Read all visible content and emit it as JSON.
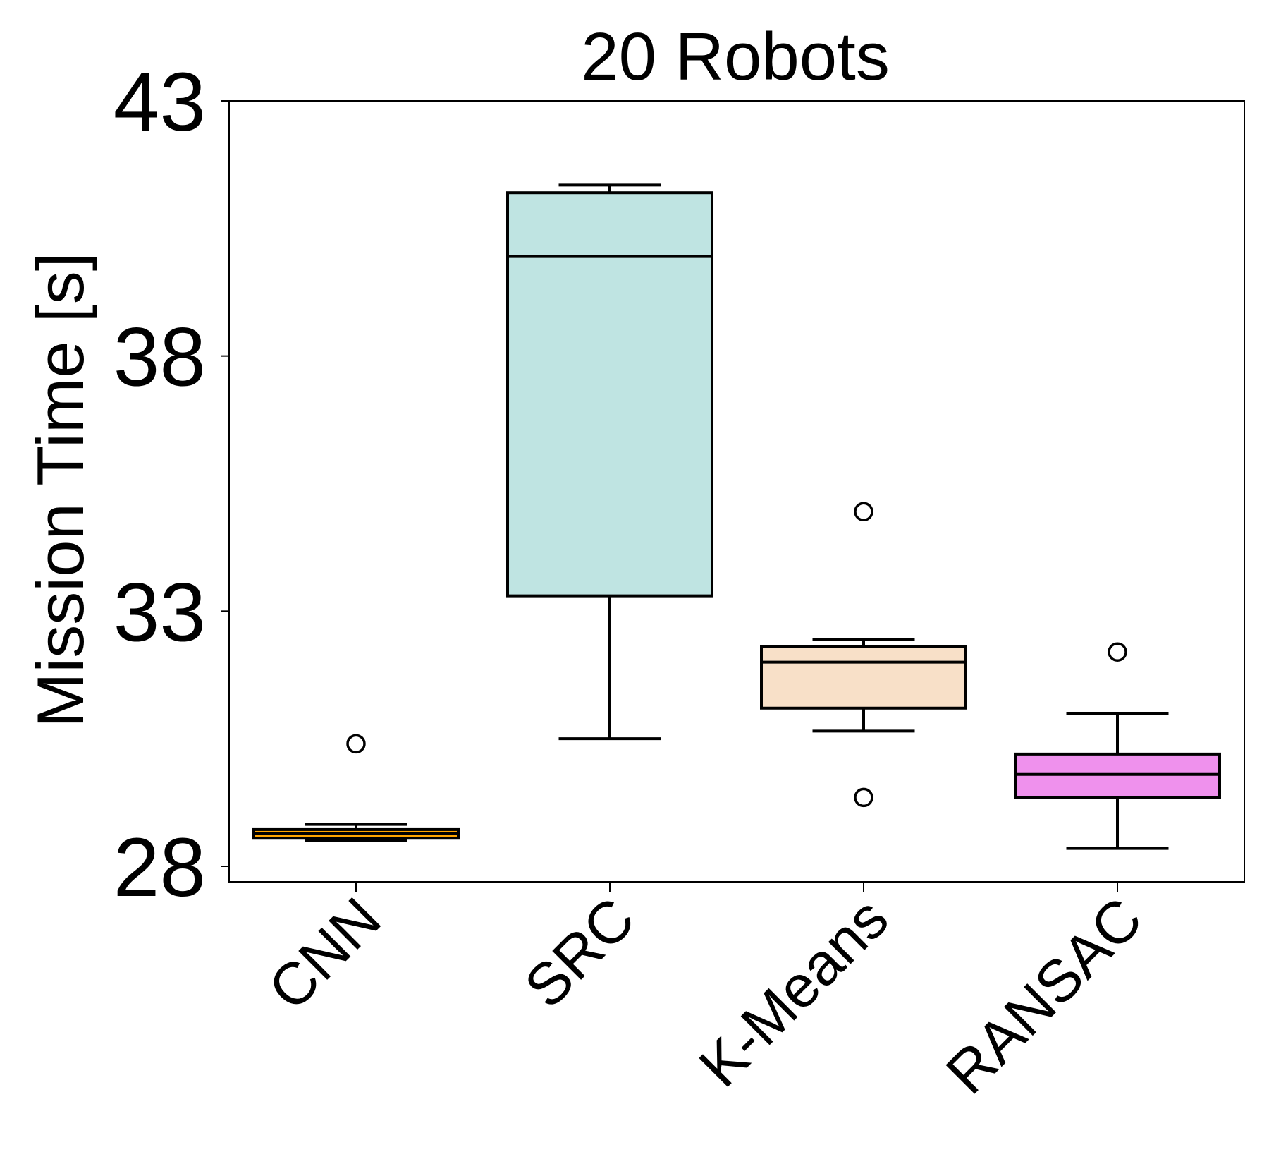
{
  "chart_data": {
    "type": "box",
    "title": "20 Robots",
    "xlabel": "",
    "ylabel": "Mission Time [s]",
    "ylim": [
      27.7,
      43
    ],
    "yticks": [
      28,
      33,
      38,
      43
    ],
    "ytick_labels": [
      "28",
      "33",
      "38",
      "43"
    ],
    "categories": [
      "CNN",
      "SRC",
      "K-Means",
      "RANSAC"
    ],
    "boxes": [
      {
        "name": "CNN",
        "whisker_low": 28.5,
        "q1": 28.55,
        "median": 28.65,
        "q3": 28.72,
        "whisker_high": 28.82,
        "fliers": [
          30.4
        ],
        "color": "#ffa500"
      },
      {
        "name": "SRC",
        "whisker_low": 30.5,
        "q1": 33.3,
        "median": 39.95,
        "q3": 41.2,
        "whisker_high": 41.35,
        "fliers": [],
        "color": "#bfe4e2"
      },
      {
        "name": "K-Means",
        "whisker_low": 30.65,
        "q1": 31.1,
        "median": 32.0,
        "q3": 32.3,
        "whisker_high": 32.45,
        "fliers": [
          34.95,
          29.35
        ],
        "color": "#f8e0c8"
      },
      {
        "name": "RANSAC",
        "whisker_low": 28.35,
        "q1": 29.35,
        "median": 29.8,
        "q3": 30.2,
        "whisker_high": 31.0,
        "fliers": [
          32.2
        ],
        "color": "#ef91ed"
      }
    ]
  }
}
